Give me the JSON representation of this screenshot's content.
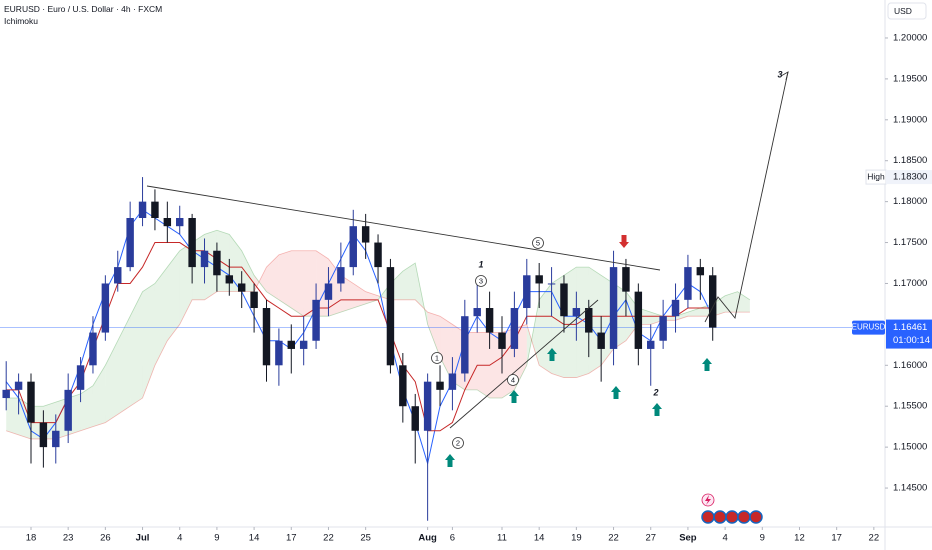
{
  "header": {
    "symbol_line": "EURUSD · Euro / U.S. Dollar · 4h · FXCM",
    "indicator": "Ichimoku",
    "currency": "USD"
  },
  "chart_data": {
    "type": "candlestick",
    "symbol": "EURUSD",
    "x": [
      -2,
      -1,
      0,
      1,
      2,
      3,
      4,
      5,
      6,
      7,
      8,
      9,
      10,
      11,
      12,
      13,
      14,
      15,
      16,
      17,
      18,
      19,
      20,
      21,
      22,
      23,
      24,
      25,
      26,
      27,
      28,
      29,
      30,
      31,
      32,
      33,
      34,
      35,
      36,
      37,
      38,
      39,
      40,
      41,
      42,
      43,
      44,
      45,
      46,
      47,
      48,
      49,
      50,
      51,
      52,
      53,
      54,
      55
    ],
    "open": [
      1.156,
      1.157,
      1.158,
      1.153,
      1.15,
      1.152,
      1.157,
      1.16,
      1.164,
      1.17,
      1.172,
      1.178,
      1.18,
      1.178,
      1.177,
      1.178,
      1.172,
      1.174,
      1.171,
      1.17,
      1.169,
      1.167,
      1.16,
      1.163,
      1.162,
      1.163,
      1.168,
      1.17,
      1.172,
      1.177,
      1.175,
      1.172,
      1.16,
      1.155,
      1.152,
      1.158,
      1.157,
      1.159,
      1.166,
      1.167,
      1.164,
      1.162,
      1.167,
      1.171,
      1.17,
      1.17,
      1.166,
      1.167,
      1.164,
      1.162,
      1.172,
      1.169,
      1.162,
      1.163,
      1.166,
      1.168,
      1.172,
      1.171
    ],
    "high": [
      1.1605,
      1.159,
      1.159,
      1.1545,
      1.154,
      1.159,
      1.161,
      1.166,
      1.171,
      1.174,
      1.18,
      1.183,
      1.1815,
      1.18,
      1.1795,
      1.1785,
      1.1755,
      1.175,
      1.173,
      1.1715,
      1.17,
      1.168,
      1.1645,
      1.165,
      1.166,
      1.17,
      1.172,
      1.175,
      1.179,
      1.1785,
      1.176,
      1.173,
      1.1615,
      1.1565,
      1.159,
      1.16,
      1.161,
      1.168,
      1.17,
      1.169,
      1.166,
      1.169,
      1.173,
      1.1725,
      1.172,
      1.171,
      1.169,
      1.168,
      1.166,
      1.174,
      1.173,
      1.17,
      1.165,
      1.168,
      1.17,
      1.1735,
      1.173,
      1.172
    ],
    "low": [
      1.1545,
      1.154,
      1.148,
      1.1475,
      1.148,
      1.1505,
      1.1555,
      1.159,
      1.163,
      1.169,
      1.1715,
      1.177,
      1.1765,
      1.175,
      1.176,
      1.17,
      1.17,
      1.169,
      1.1685,
      1.167,
      1.164,
      1.158,
      1.1575,
      1.159,
      1.16,
      1.162,
      1.166,
      1.169,
      1.171,
      1.173,
      1.17,
      1.159,
      1.153,
      1.148,
      1.141,
      1.155,
      1.1545,
      1.158,
      1.164,
      1.162,
      1.159,
      1.161,
      1.165,
      1.167,
      1.166,
      1.164,
      1.163,
      1.161,
      1.158,
      1.16,
      1.166,
      1.16,
      1.1575,
      1.162,
      1.164,
      1.167,
      1.168,
      1.163
    ],
    "close": [
      1.157,
      1.158,
      1.153,
      1.15,
      1.152,
      1.157,
      1.16,
      1.164,
      1.17,
      1.172,
      1.178,
      1.18,
      1.178,
      1.177,
      1.178,
      1.172,
      1.174,
      1.171,
      1.17,
      1.169,
      1.167,
      1.16,
      1.163,
      1.162,
      1.163,
      1.168,
      1.17,
      1.172,
      1.177,
      1.175,
      1.172,
      1.16,
      1.155,
      1.152,
      1.158,
      1.157,
      1.159,
      1.166,
      1.167,
      1.164,
      1.162,
      1.167,
      1.171,
      1.17,
      1.17,
      1.166,
      1.167,
      1.164,
      1.162,
      1.172,
      1.169,
      1.162,
      1.163,
      1.166,
      1.168,
      1.172,
      1.171,
      1.16461
    ],
    "up_color": "#2a3c9c",
    "down_color": "#131722",
    "lines": [
      {
        "color": "#2962ff",
        "values": [
          1.158,
          1.156,
          1.152,
          1.151,
          1.153,
          1.156,
          1.16,
          1.165,
          1.169,
          1.172,
          1.177,
          1.179,
          1.178,
          1.177,
          1.176,
          1.174,
          1.173,
          1.172,
          1.171,
          1.169,
          1.166,
          1.163,
          1.163,
          1.162,
          1.164,
          1.167,
          1.17,
          1.173,
          1.176,
          1.174,
          1.17,
          1.163,
          1.157,
          1.153,
          1.148,
          1.155,
          1.158,
          1.163,
          1.166,
          1.164,
          1.163,
          1.166,
          1.169,
          1.169,
          1.169,
          1.166,
          1.166,
          1.165,
          1.163,
          1.166,
          1.168,
          1.164,
          1.163,
          1.166,
          1.168,
          1.17,
          1.169,
          1.166
        ]
      },
      {
        "color": "#c62828",
        "values": [
          1.157,
          1.157,
          1.153,
          1.153,
          1.153,
          1.156,
          1.158,
          1.162,
          1.166,
          1.17,
          1.17,
          1.172,
          1.175,
          1.175,
          1.175,
          1.174,
          1.174,
          1.173,
          1.172,
          1.172,
          1.17,
          1.168,
          1.167,
          1.166,
          1.166,
          1.167,
          1.167,
          1.168,
          1.168,
          1.168,
          1.168,
          1.164,
          1.16,
          1.158,
          1.152,
          1.152,
          1.153,
          1.157,
          1.16,
          1.16,
          1.161,
          1.163,
          1.166,
          1.166,
          1.166,
          1.165,
          1.165,
          1.166,
          1.166,
          1.166,
          1.166,
          1.166,
          1.166,
          1.166,
          1.166,
          1.167,
          1.167,
          1.167
        ]
      }
    ],
    "cloud": {
      "x": [
        -2,
        -1,
        0,
        1,
        2,
        3,
        4,
        5,
        6,
        7,
        8,
        9,
        10,
        11,
        12,
        13,
        14,
        15,
        16,
        17,
        18,
        19,
        20,
        21,
        22,
        23,
        24,
        25,
        26,
        27,
        28,
        29,
        30,
        31,
        32,
        33,
        34,
        35,
        36,
        37,
        38,
        39,
        40,
        41,
        42,
        43,
        44,
        45,
        46,
        47,
        48,
        49,
        50,
        51,
        52,
        53,
        54,
        55,
        56,
        57,
        58
      ],
      "span_a": [
        1.156,
        1.156,
        1.155,
        1.155,
        1.1555,
        1.156,
        1.1565,
        1.1575,
        1.16,
        1.163,
        1.166,
        1.169,
        1.17,
        1.172,
        1.174,
        1.175,
        1.176,
        1.1765,
        1.176,
        1.174,
        1.171,
        1.169,
        1.168,
        1.167,
        1.166,
        1.166,
        1.166,
        1.1665,
        1.167,
        1.1675,
        1.168,
        1.17,
        1.1715,
        1.1725,
        1.165,
        1.161,
        1.158,
        1.157,
        1.157,
        1.156,
        1.156,
        1.157,
        1.16,
        1.168,
        1.17,
        1.171,
        1.172,
        1.172,
        1.171,
        1.17,
        1.169,
        1.167,
        1.1665,
        1.166,
        1.166,
        1.1665,
        1.167,
        1.1675,
        1.1685,
        1.169,
        1.168
      ],
      "span_b": [
        1.152,
        1.1515,
        1.151,
        1.151,
        1.151,
        1.1515,
        1.152,
        1.1525,
        1.153,
        1.154,
        1.155,
        1.156,
        1.16,
        1.163,
        1.165,
        1.168,
        1.168,
        1.169,
        1.169,
        1.169,
        1.169,
        1.172,
        1.1735,
        1.174,
        1.174,
        1.174,
        1.173,
        1.171,
        1.17,
        1.169,
        1.1685,
        1.168,
        1.168,
        1.168,
        1.1665,
        1.166,
        1.165,
        1.164,
        1.164,
        1.164,
        1.164,
        1.1645,
        1.165,
        1.16,
        1.159,
        1.1585,
        1.1585,
        1.159,
        1.16,
        1.162,
        1.163,
        1.165,
        1.165,
        1.1655,
        1.1655,
        1.166,
        1.166,
        1.166,
        1.1665,
        1.1665,
        1.1665
      ],
      "up_color": "#43a047",
      "down_color": "#e53935"
    },
    "xlim": [
      -2.5,
      68.9
    ],
    "ylim": [
      1.14024,
      1.20464
    ],
    "xticks": [
      {
        "value": 0,
        "label": "18"
      },
      {
        "value": 3,
        "label": "23"
      },
      {
        "value": 6,
        "label": "26"
      },
      {
        "value": 9,
        "label": "Jul"
      },
      {
        "value": 12,
        "label": "4"
      },
      {
        "value": 15,
        "label": "9"
      },
      {
        "value": 18,
        "label": "14"
      },
      {
        "value": 21,
        "label": "17"
      },
      {
        "value": 24,
        "label": "22"
      },
      {
        "value": 27,
        "label": "25"
      },
      {
        "value": 32,
        "label": "Aug"
      },
      {
        "value": 34,
        "label": "6"
      },
      {
        "value": 38,
        "label": "11"
      },
      {
        "value": 41,
        "label": "14"
      },
      {
        "value": 44,
        "label": "19"
      },
      {
        "value": 47,
        "label": "22"
      },
      {
        "value": 50,
        "label": "27"
      },
      {
        "value": 53,
        "label": "Sep"
      },
      {
        "value": 56,
        "label": "4"
      },
      {
        "value": 59,
        "label": "9"
      },
      {
        "value": 62,
        "label": "12"
      },
      {
        "value": 65,
        "label": "17"
      },
      {
        "value": 68,
        "label": "22"
      }
    ],
    "yticks": [
      {
        "value": 1.2,
        "label": "1.20000"
      },
      {
        "value": 1.195,
        "label": "1.19500"
      },
      {
        "value": 1.19,
        "label": "1.19000"
      },
      {
        "value": 1.185,
        "label": "1.18500"
      },
      {
        "value": 1.18,
        "label": "1.18000"
      },
      {
        "value": 1.175,
        "label": "1.17500"
      },
      {
        "value": 1.17,
        "label": "1.17000"
      },
      {
        "value": 1.16,
        "label": "1.16000"
      },
      {
        "value": 1.155,
        "label": "1.15500"
      },
      {
        "value": 1.15,
        "label": "1.15000"
      },
      {
        "value": 1.145,
        "label": "1.14500"
      }
    ],
    "last_price": 1.16461,
    "countdown": "01:00:14",
    "price_color": "#2962ff",
    "high_marker": {
      "label": "High",
      "value": 1.183,
      "value_label": "1.18300"
    },
    "annotations": {
      "circled": [
        "1",
        "2",
        "3",
        "4",
        "5"
      ],
      "waves": [
        "1",
        "2",
        "3"
      ]
    }
  }
}
